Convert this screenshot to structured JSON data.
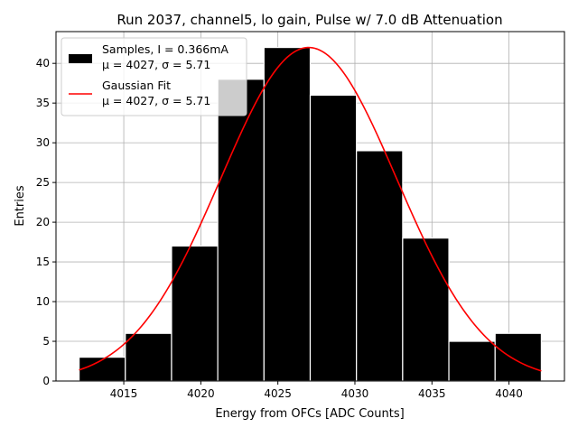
{
  "chart_data": {
    "type": "bar",
    "title": "Run 2037, channel5, lo gain, Pulse w/ 7.0 dB Attenuation",
    "xlabel": "Energy from OFCs [ADC Counts]",
    "ylabel": "Entries",
    "xlim": [
      4010.6,
      4043.6
    ],
    "ylim": [
      0,
      44
    ],
    "grid": true,
    "legend_position": "top-left",
    "xticks": [
      4015,
      4020,
      4025,
      4030,
      4035,
      4040
    ],
    "xtick_labels": [
      "4015",
      "4020",
      "4025",
      "4030",
      "4035",
      "4040"
    ],
    "yticks": [
      0,
      5,
      10,
      15,
      20,
      25,
      30,
      35,
      40
    ],
    "ytick_labels": [
      "0",
      "5",
      "10",
      "15",
      "20",
      "25",
      "30",
      "35",
      "40"
    ],
    "histogram": {
      "bin_edges": [
        4012.1,
        4015.1,
        4018.1,
        4021.1,
        4024.1,
        4027.1,
        4030.1,
        4033.1,
        4036.1,
        4039.1,
        4042.1
      ],
      "counts": [
        3,
        6,
        17,
        38,
        42,
        36,
        29,
        18,
        5,
        6
      ],
      "color": "#000000",
      "edge_color": "#ffffff"
    },
    "fit": {
      "mu": 4027,
      "sigma": 5.71,
      "amplitude": 42,
      "x_range": [
        4012.1,
        4042.1
      ],
      "color": "#ff0000"
    },
    "legend": [
      {
        "line1": "Samples, I = 0.366mA",
        "line2": "μ = 4027, σ = 5.71",
        "kind": "bar"
      },
      {
        "line1": "Gaussian Fit",
        "line2": "μ = 4027, σ = 5.71",
        "kind": "line"
      }
    ]
  }
}
